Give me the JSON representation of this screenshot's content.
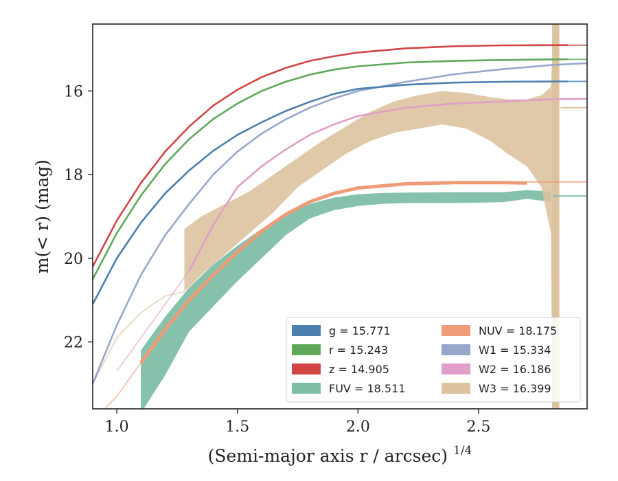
{
  "chart_data": {
    "type": "line",
    "xlabel": "(Semi-major axis r / arcsec)",
    "xlabel_var": "r",
    "xlabel_exp": "1/4",
    "ylabel": "m(< r) (mag)",
    "xlim": [
      0.9,
      2.95
    ],
    "ylim": [
      23.6,
      14.4
    ],
    "y_inverted": true,
    "xticks": [
      "1.0",
      "1.5",
      "2.0",
      "2.5"
    ],
    "yticks": [
      "16",
      "18",
      "20",
      "22"
    ],
    "grid": false,
    "legend_location": "lower-right",
    "legend": [
      {
        "key": "g",
        "label": "g = 15.771",
        "color": "#4c7fae"
      },
      {
        "key": "r",
        "label": "r = 15.243",
        "color": "#5fa85a"
      },
      {
        "key": "z",
        "label": "z = 14.905",
        "color": "#d24545"
      },
      {
        "key": "FUV",
        "label": "FUV = 18.511",
        "color": "#7fbfa6"
      },
      {
        "key": "NUV",
        "label": "NUV = 18.175",
        "color": "#ee9c78"
      },
      {
        "key": "W1",
        "label": "W1 = 15.334",
        "color": "#97a7cb"
      },
      {
        "key": "W2",
        "label": "W2 = 16.186",
        "color": "#e09ec8"
      },
      {
        "key": "W3",
        "label": "W3 = 16.399",
        "color": "#dcc3a0"
      }
    ],
    "series": [
      {
        "key": "z",
        "color": "#d24545",
        "asymptote": 14.905,
        "x": [
          0.9,
          1.0,
          1.1,
          1.2,
          1.3,
          1.4,
          1.5,
          1.6,
          1.7,
          1.8,
          1.9,
          2.0,
          2.2,
          2.4,
          2.6,
          2.87
        ],
        "y": [
          20.2,
          19.1,
          18.2,
          17.45,
          16.85,
          16.35,
          15.97,
          15.67,
          15.45,
          15.28,
          15.17,
          15.08,
          14.98,
          14.93,
          14.91,
          14.905
        ]
      },
      {
        "key": "r",
        "color": "#5fa85a",
        "asymptote": 15.243,
        "x": [
          0.9,
          1.0,
          1.1,
          1.2,
          1.3,
          1.4,
          1.5,
          1.6,
          1.7,
          1.8,
          1.9,
          2.0,
          2.2,
          2.4,
          2.6,
          2.87
        ],
        "y": [
          20.5,
          19.4,
          18.5,
          17.75,
          17.15,
          16.67,
          16.3,
          16.0,
          15.78,
          15.61,
          15.49,
          15.41,
          15.32,
          15.28,
          15.26,
          15.243
        ]
      },
      {
        "key": "W1",
        "color": "#97a7cb",
        "asymptote": 15.334,
        "x": [
          0.9,
          1.0,
          1.1,
          1.2,
          1.3,
          1.4,
          1.5,
          1.6,
          1.7,
          1.8,
          1.9,
          2.0,
          2.2,
          2.4,
          2.6,
          2.8,
          2.95
        ],
        "y": [
          23.0,
          21.6,
          20.4,
          19.45,
          18.7,
          18.0,
          17.45,
          17.02,
          16.68,
          16.4,
          16.18,
          16.0,
          15.78,
          15.6,
          15.48,
          15.38,
          15.334
        ]
      },
      {
        "key": "g",
        "color": "#4c7fae",
        "asymptote": 15.771,
        "x": [
          0.9,
          1.0,
          1.1,
          1.2,
          1.3,
          1.4,
          1.5,
          1.6,
          1.7,
          1.8,
          1.9,
          2.0,
          2.2,
          2.4,
          2.6,
          2.87
        ],
        "y": [
          21.1,
          20.0,
          19.15,
          18.45,
          17.9,
          17.43,
          17.05,
          16.75,
          16.48,
          16.26,
          16.07,
          15.95,
          15.85,
          15.8,
          15.78,
          15.771
        ]
      },
      {
        "key": "W2",
        "color": "#e09ec8",
        "asymptote": 16.186,
        "x": [
          1.3,
          1.4,
          1.5,
          1.6,
          1.7,
          1.8,
          1.9,
          2.0,
          2.2,
          2.4,
          2.6,
          2.8,
          2.95
        ],
        "y": [
          20.3,
          19.2,
          18.3,
          17.8,
          17.4,
          17.05,
          16.8,
          16.6,
          16.4,
          16.3,
          16.25,
          16.2,
          16.186
        ]
      },
      {
        "key": "NUV",
        "color": "#ee9c78",
        "asymptote": 18.175,
        "x": [
          1.1,
          1.2,
          1.3,
          1.4,
          1.5,
          1.6,
          1.7,
          1.8,
          1.9,
          2.0,
          2.2,
          2.4,
          2.6,
          2.7
        ],
        "y": [
          22.5,
          21.7,
          21.0,
          20.4,
          19.85,
          19.35,
          18.95,
          18.65,
          18.45,
          18.32,
          18.22,
          18.19,
          18.19,
          18.2
        ]
      }
    ],
    "bands": [
      {
        "key": "FUV",
        "color": "#7fbfa6",
        "x": [
          1.1,
          1.2,
          1.3,
          1.4,
          1.5,
          1.6,
          1.7,
          1.8,
          1.9,
          2.0,
          2.1,
          2.2,
          2.4,
          2.6,
          2.7,
          2.8
        ],
        "lo": [
          22.2,
          21.4,
          20.7,
          20.15,
          19.7,
          19.3,
          18.95,
          18.7,
          18.55,
          18.47,
          18.44,
          18.43,
          18.42,
          18.42,
          18.37,
          18.4
        ],
        "hi": [
          23.7,
          22.8,
          21.75,
          21.15,
          20.55,
          20.0,
          19.45,
          19.05,
          18.85,
          18.75,
          18.7,
          18.68,
          18.68,
          18.66,
          18.58,
          18.65
        ]
      },
      {
        "key": "W3",
        "color": "#dcc3a0",
        "x": [
          1.28,
          1.35,
          1.45,
          1.55,
          1.65,
          1.75,
          1.85,
          1.95,
          2.05,
          2.15,
          2.25,
          2.35,
          2.45,
          2.55,
          2.62,
          2.7,
          2.76,
          2.8,
          2.805,
          2.81
        ],
        "lo": [
          19.3,
          19.0,
          18.7,
          18.4,
          18.0,
          17.6,
          17.2,
          16.85,
          16.5,
          16.25,
          16.1,
          16.0,
          16.05,
          16.15,
          16.2,
          16.2,
          16.1,
          15.9,
          15.2,
          14.4
        ],
        "hi": [
          20.8,
          20.4,
          19.9,
          19.4,
          18.9,
          18.3,
          17.9,
          17.5,
          17.2,
          17.0,
          16.9,
          16.8,
          16.9,
          17.2,
          17.5,
          17.8,
          18.3,
          19.4,
          23.6,
          23.6
        ]
      }
    ],
    "vertical_band": {
      "key": "W3",
      "color": "#dcc3a0",
      "x": [
        2.805,
        2.835
      ]
    }
  }
}
